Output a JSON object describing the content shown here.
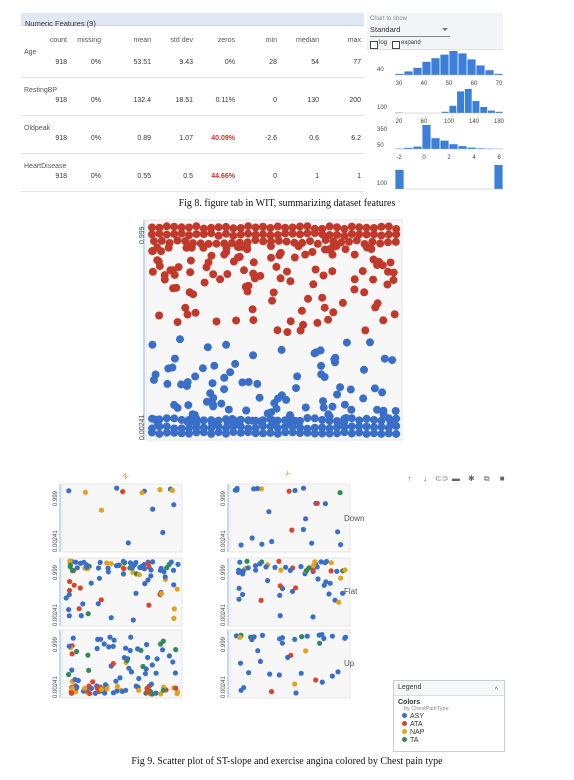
{
  "table": {
    "header": "Numeric Features (9)",
    "columns": [
      "count",
      "missing",
      "mean",
      "std dev",
      "zeros",
      "min",
      "median",
      "max"
    ],
    "rows": [
      {
        "feature": "Age",
        "values": [
          "918",
          "0%",
          "53.51",
          "9.43",
          "0%",
          "28",
          "54",
          "77"
        ],
        "zeros_highlight": false
      },
      {
        "feature": "RestingBP",
        "values": [
          "918",
          "0%",
          "132.4",
          "18.51",
          "0.11%",
          "0",
          "130",
          "200"
        ],
        "zeros_highlight": false
      },
      {
        "feature": "Oldpeak",
        "values": [
          "918",
          "0%",
          "0.89",
          "1.07",
          "40.09%",
          "-2.6",
          "0.6",
          "6.2"
        ],
        "zeros_highlight": true
      },
      {
        "feature": "HeartDisease",
        "values": [
          "918",
          "0%",
          "0.55",
          "0.5",
          "44.66%",
          "0",
          "1",
          "1"
        ],
        "zeros_highlight": true
      }
    ]
  },
  "controls": {
    "chart_label": "Chart to show",
    "chart_value": "Standard",
    "log_label": "log",
    "expand_label": "expand"
  },
  "histograms": [
    {
      "ymax_label": "40",
      "bars": [
        0.05,
        0.15,
        0.3,
        0.55,
        0.7,
        0.85,
        1.0,
        0.9,
        0.65,
        0.4,
        0.2,
        0.05
      ],
      "ticks": [
        "30",
        "40",
        "50",
        "60",
        "70"
      ]
    },
    {
      "ymax_label": "100",
      "bars": [
        0.02,
        0,
        0,
        0,
        0,
        0,
        0.05,
        0.3,
        0.9,
        1.0,
        0.5,
        0.25,
        0.1,
        0.05
      ],
      "ticks": [
        "20",
        "60",
        "100",
        "140",
        "180"
      ]
    },
    {
      "ymax_label": "350",
      "ymin_label": "50",
      "bars": [
        0.02,
        0.05,
        0.1,
        1.0,
        0.45,
        0.35,
        0.2,
        0.12,
        0.06,
        0.03,
        0.02,
        0.01
      ],
      "ticks": [
        "-2",
        "0",
        "2",
        "4",
        "6"
      ]
    },
    {
      "ymax_label": "100",
      "bars": [
        0.8,
        0,
        0,
        0,
        0,
        0,
        0,
        0,
        0,
        0,
        0,
        1.0
      ],
      "ticks": []
    }
  ],
  "fig8_caption": "Fig 8. figure tab in WIT, summarizing dataset features",
  "mid_scatter": {
    "y_top_label": "0.999",
    "y_bottom_label": "0.00241",
    "colors": {
      "top": "#c0392b",
      "bottom": "#3a6fc9"
    }
  },
  "facets": {
    "column_labels": [
      "N",
      "Y"
    ],
    "row_labels": [
      "Down",
      "Flat",
      "Up"
    ],
    "y_top_label": "0.999",
    "y_bottom_label": "0.00241"
  },
  "toolbar_icons": [
    "arrow-up-icon",
    "arrow-down-icon",
    "link-icon",
    "comment-icon",
    "settings-icon",
    "copy-icon",
    "delete-icon"
  ],
  "legend": {
    "header": "Legend",
    "title": "Colors",
    "subtitle": "by ChestPainType",
    "items": [
      {
        "label": "ASY",
        "color": "#3a6fc9"
      },
      {
        "label": "ATA",
        "color": "#d9452b"
      },
      {
        "label": "NAP",
        "color": "#e0a31f"
      },
      {
        "label": "TA",
        "color": "#2e8b57"
      }
    ]
  },
  "fig9_caption": "Fig 9. Scatter plot of ST-slope and exercise angina colored by Chest pain type"
}
